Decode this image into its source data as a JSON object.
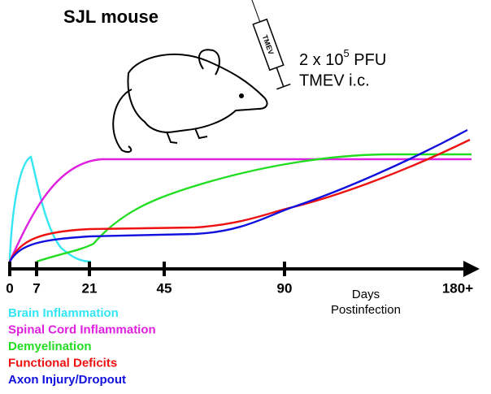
{
  "header": {
    "title": "SJL mouse"
  },
  "injection": {
    "dose_base": "2 x 10",
    "dose_exponent": "5",
    "dose_unit": " PFU",
    "route": "TMEV i.c.",
    "syringe_label": "TMEV"
  },
  "axis": {
    "ticks": [
      "0",
      "7",
      "21",
      "45",
      "90",
      "180+"
    ],
    "label_line1": "Days",
    "label_line2": "Postinfection"
  },
  "legend": [
    {
      "name": "Brain Inflammation",
      "color": "#33e6f2"
    },
    {
      "name": "Spinal Cord Inflammation",
      "color": "#e020e0"
    },
    {
      "name": "Demyelination",
      "color": "#22dd22"
    },
    {
      "name": "Functional Deficits",
      "color": "#ee1111"
    },
    {
      "name": "Axon Injury/Dropout",
      "color": "#1111dd"
    }
  ]
}
